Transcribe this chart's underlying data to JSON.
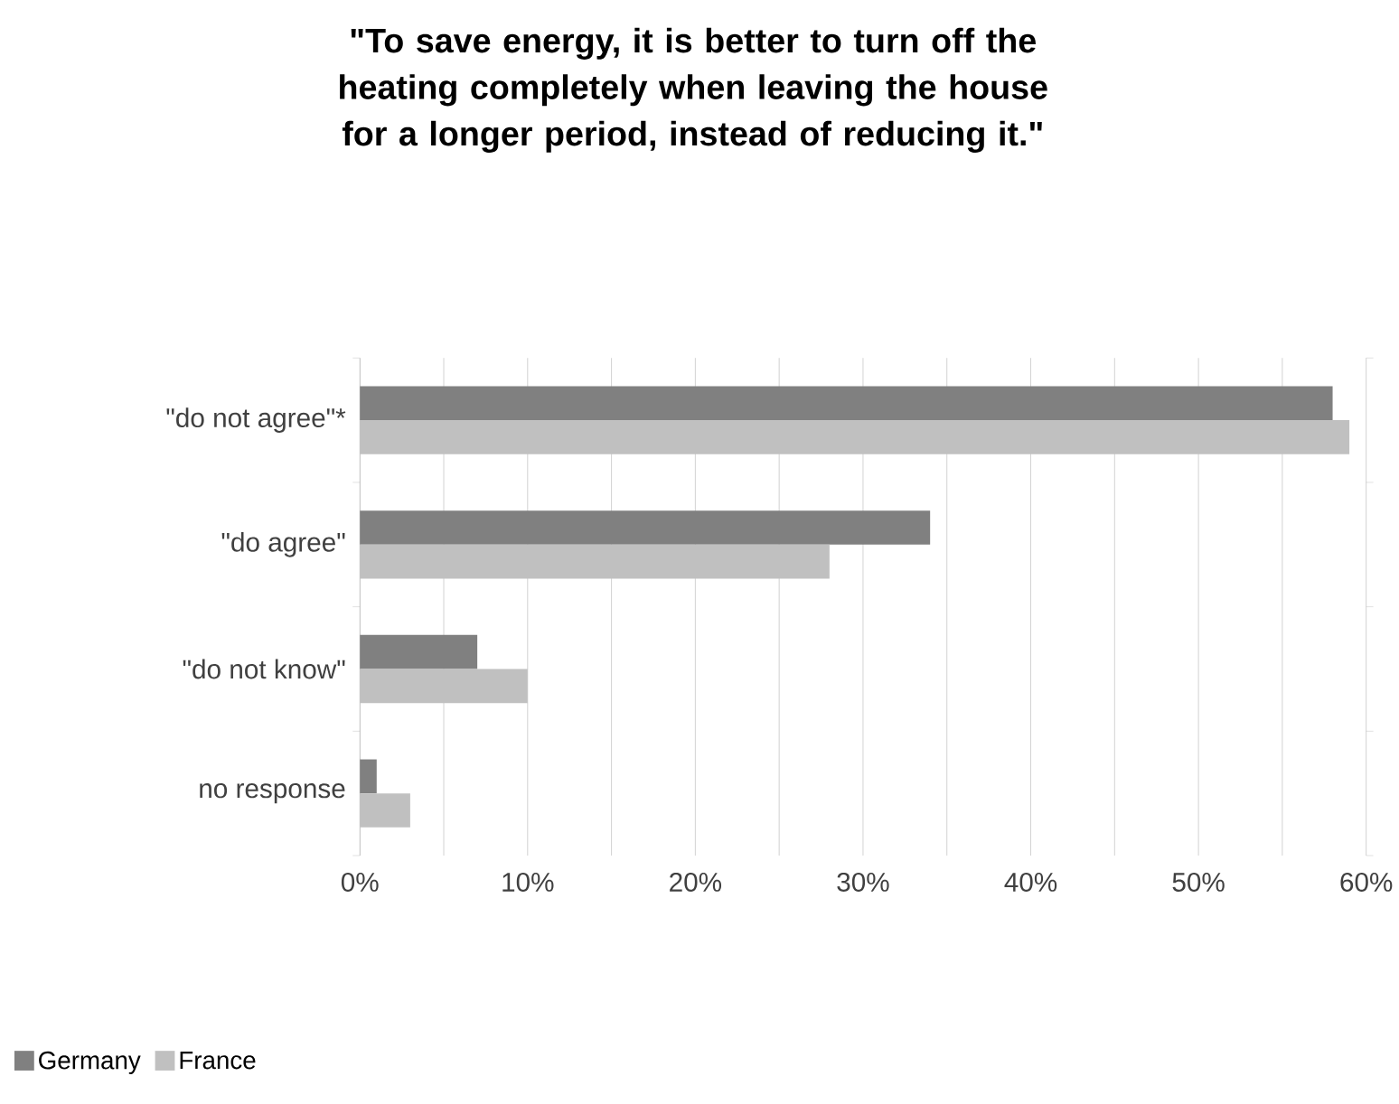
{
  "chart_data": {
    "type": "bar",
    "orientation": "horizontal",
    "title": "\"To save energy, it is better to turn off the heating completely when leaving the house for a longer period, instead of reducing it.\"",
    "categories": [
      "\"do not agree\"*",
      "\"do agree\"",
      "\"do not know\"",
      "no response"
    ],
    "series": [
      {
        "name": "Germany",
        "color": "#808080",
        "values": [
          58,
          34,
          7,
          1
        ]
      },
      {
        "name": "France",
        "color": "#c0c0c0",
        "values": [
          59,
          28,
          10,
          3
        ]
      }
    ],
    "xlim": [
      0,
      60
    ],
    "xticks": [
      {
        "value": 0,
        "label": "0%"
      },
      {
        "value": 5,
        "label": null
      },
      {
        "value": 10,
        "label": "10%"
      },
      {
        "value": 15,
        "label": null
      },
      {
        "value": 20,
        "label": "20%"
      },
      {
        "value": 25,
        "label": null
      },
      {
        "value": 30,
        "label": "30%"
      },
      {
        "value": 35,
        "label": null
      },
      {
        "value": 40,
        "label": "40%"
      },
      {
        "value": 45,
        "label": null
      },
      {
        "value": 50,
        "label": "50%"
      },
      {
        "value": 55,
        "label": null
      },
      {
        "value": 60,
        "label": "60%"
      }
    ],
    "grid": "x",
    "legend": "bottom left"
  }
}
